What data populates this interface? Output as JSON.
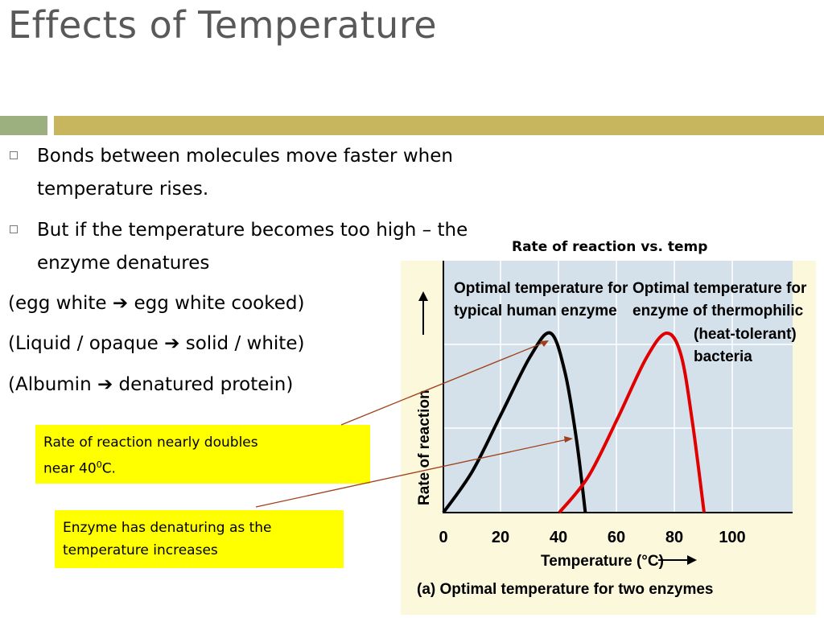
{
  "slide": {
    "title": "Effects of Temperature",
    "bullets": [
      {
        "line1": "Bonds between molecules move faster when",
        "line2": "temperature rises."
      },
      {
        "line1": "But if the temperature becomes too high – the",
        "line2": "enzyme denatures"
      }
    ],
    "examples": [
      {
        "left": "(egg white ",
        "arrow": "➔",
        "right": " egg white cooked)"
      },
      {
        "left": "(Liquid / opaque ",
        "arrow": "➔",
        "right": " solid / white)"
      },
      {
        "left": "(Albumin ",
        "arrow": "➔",
        "right": " denatured protein)"
      }
    ],
    "callouts": {
      "first_line1": "Rate of reaction nearly doubles",
      "first_line2_pre": "near 40",
      "first_line2_sup": "0",
      "first_line2_post": "C.",
      "second_line1": "Enzyme has denaturing as the",
      "second_line2": "temperature increases"
    },
    "colors": {
      "title": "#595959",
      "band_green": "#9bb07e",
      "band_gold": "#c8b65e",
      "callout_bg": "#ffff00",
      "arrow_line": "#a0401a"
    }
  },
  "chart_data": {
    "type": "line",
    "caption": "Rate of reaction vs. temp",
    "xlabel": "Temperature (°C)",
    "ylabel": "Rate of reaction",
    "x_ticks": [
      "0",
      "20",
      "40",
      "60",
      "80",
      "100"
    ],
    "xlim": [
      0,
      120
    ],
    "subtitle": "(a) Optimal temperature for two enzymes",
    "annotations": [
      {
        "line1": "Optimal temperature for",
        "line2": "typical human enzyme"
      },
      {
        "line1": "Optimal temperature for",
        "line2": "enzyme of thermophilic",
        "line3": "(heat-tolerant)",
        "line4": "bacteria"
      }
    ],
    "series": [
      {
        "color": "#000000",
        "x": [
          0,
          10,
          20,
          30,
          37,
          42,
          46,
          49
        ],
        "y": [
          0,
          0.23,
          0.55,
          0.87,
          1.0,
          0.78,
          0.4,
          0
        ]
      },
      {
        "color": "#e00000",
        "x": [
          40,
          50,
          60,
          70,
          77,
          82,
          86,
          90
        ],
        "y": [
          0,
          0.2,
          0.52,
          0.86,
          1.0,
          0.88,
          0.5,
          0
        ]
      }
    ]
  }
}
